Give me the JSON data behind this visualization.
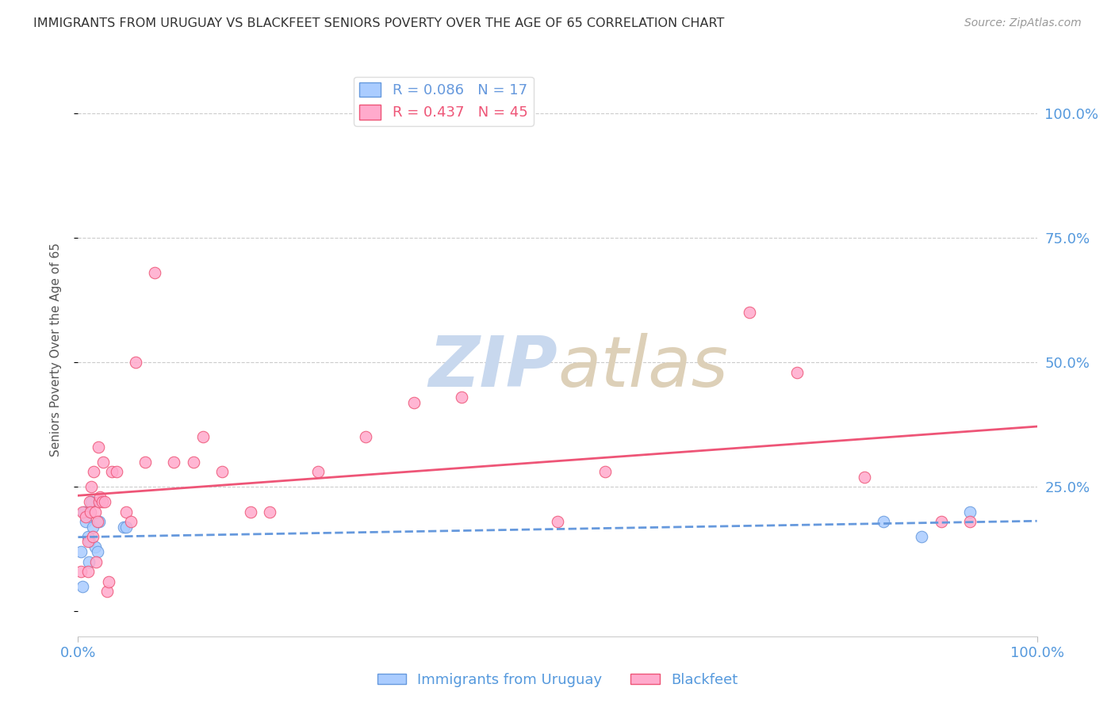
{
  "title": "IMMIGRANTS FROM URUGUAY VS BLACKFEET SENIORS POVERTY OVER THE AGE OF 65 CORRELATION CHART",
  "source": "Source: ZipAtlas.com",
  "ylabel": "Seniors Poverty Over the Age of 65",
  "ytick_labels_right": [
    "100.0%",
    "75.0%",
    "50.0%",
    "25.0%"
  ],
  "ytick_values": [
    0,
    25,
    50,
    75,
    100
  ],
  "xlim": [
    0,
    100
  ],
  "ylim": [
    -5,
    110
  ],
  "legend_entry1": "R = 0.086   N = 17",
  "legend_entry2": "R = 0.437   N = 45",
  "legend_label1": "Immigrants from Uruguay",
  "legend_label2": "Blackfeet",
  "uruguay_R": 0.086,
  "uruguay_N": 17,
  "blackfeet_R": 0.437,
  "blackfeet_N": 45,
  "color_uruguay": "#aaccff",
  "color_blackfeet": "#ffaacc",
  "color_uruguay_line": "#6699dd",
  "color_blackfeet_line": "#ee5577",
  "color_axis_labels": "#5599dd",
  "watermark_zip_color": "#ccd8ee",
  "watermark_atlas_color": "#ddccbb",
  "uruguay_x": [
    0.3,
    0.5,
    0.6,
    0.8,
    1.0,
    1.1,
    1.2,
    1.4,
    1.5,
    1.8,
    2.0,
    2.2,
    4.8,
    5.0,
    84.0,
    88.0,
    93.0
  ],
  "uruguay_y": [
    12,
    5,
    20,
    18,
    15,
    10,
    14,
    22,
    17,
    13,
    12,
    18,
    17,
    17,
    18,
    15,
    20
  ],
  "blackfeet_x": [
    0.3,
    0.5,
    0.8,
    1.0,
    1.0,
    1.2,
    1.3,
    1.4,
    1.5,
    1.6,
    1.8,
    1.9,
    2.0,
    2.1,
    2.2,
    2.3,
    2.5,
    2.6,
    2.8,
    3.0,
    3.2,
    3.5,
    4.0,
    5.0,
    5.5,
    6.0,
    7.0,
    8.0,
    10.0,
    12.0,
    13.0,
    15.0,
    18.0,
    20.0,
    25.0,
    30.0,
    35.0,
    40.0,
    50.0,
    55.0,
    70.0,
    75.0,
    82.0,
    90.0,
    93.0
  ],
  "blackfeet_y": [
    8,
    20,
    19,
    14,
    8,
    22,
    20,
    25,
    15,
    28,
    20,
    10,
    18,
    33,
    22,
    23,
    22,
    30,
    22,
    4,
    6,
    28,
    28,
    20,
    18,
    50,
    30,
    68,
    30,
    30,
    35,
    28,
    20,
    20,
    28,
    35,
    42,
    43,
    18,
    28,
    60,
    48,
    27,
    18,
    18
  ],
  "background_color": "#ffffff",
  "grid_color": "#cccccc",
  "grid_style": "--",
  "title_fontsize": 11.5,
  "source_fontsize": 10,
  "tick_fontsize": 13,
  "ylabel_fontsize": 11,
  "legend_fontsize": 13
}
